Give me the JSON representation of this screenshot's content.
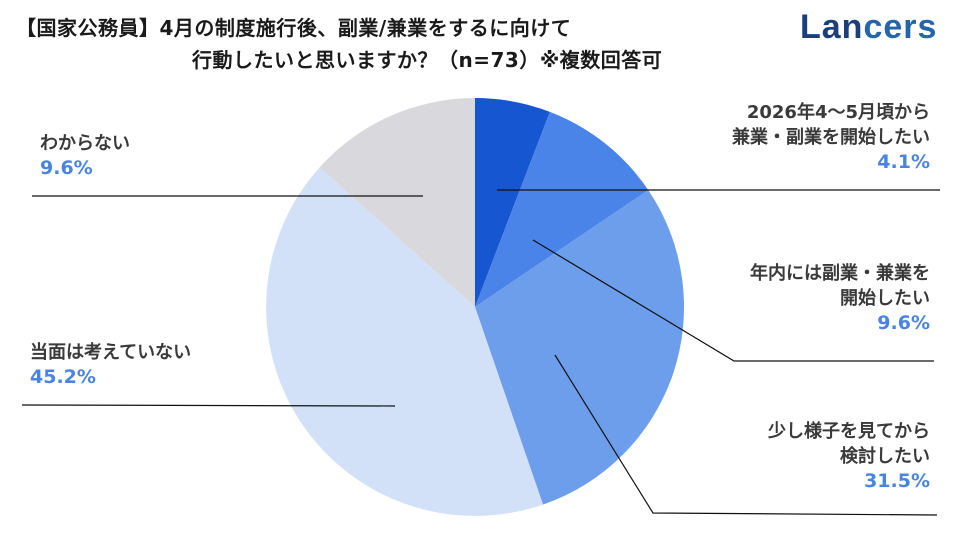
{
  "header": {
    "title_line1": "【国家公務員】4月の制度施行後、副業/兼業をするに向けて",
    "title_line2": "行動したいと思いますか？（n=73）※複数回答可",
    "logo_text_head": "Lan",
    "logo_text_tail": "cers"
  },
  "colors": {
    "slice_0": "#1656d0",
    "slice_1": "#4a84e8",
    "slice_2": "#6c9eeb",
    "slice_3": "#d2e1f7",
    "slice_4": "#d9d8dc",
    "percent_text": "#4a84e2",
    "label_text": "#3a3a3a"
  },
  "chart_data": {
    "type": "pie",
    "title": "【国家公務員】4月の制度施行後、副業/兼業をするに向けて行動したいと思いますか？（n=73）※複数回答可",
    "n": 73,
    "start_angle": "12 o'clock, clockwise",
    "categories": [
      "2026年4〜5月頃から兼業・副業を開始したい",
      "年内には副業・兼業を開始したい",
      "少し様子を見てから検討したい",
      "当面は考えていない",
      "わからない"
    ],
    "values": [
      4.1,
      9.6,
      31.5,
      45.2,
      9.6
    ],
    "unit": "%",
    "legend": "none (callout labels with leader lines)"
  },
  "labels": [
    {
      "line1": "2026年4〜5月頃から",
      "line2": "兼業・副業を開始したい",
      "pct": "4.1%"
    },
    {
      "line1": "年内には副業・兼業を",
      "line2": "開始したい",
      "pct": "9.6%"
    },
    {
      "line1": "少し様子を見てから",
      "line2": "検討したい",
      "pct": "31.5%"
    },
    {
      "line1": "当面は考えていない",
      "pct": "45.2%"
    },
    {
      "line1": "わからない",
      "pct": "9.6%"
    }
  ]
}
